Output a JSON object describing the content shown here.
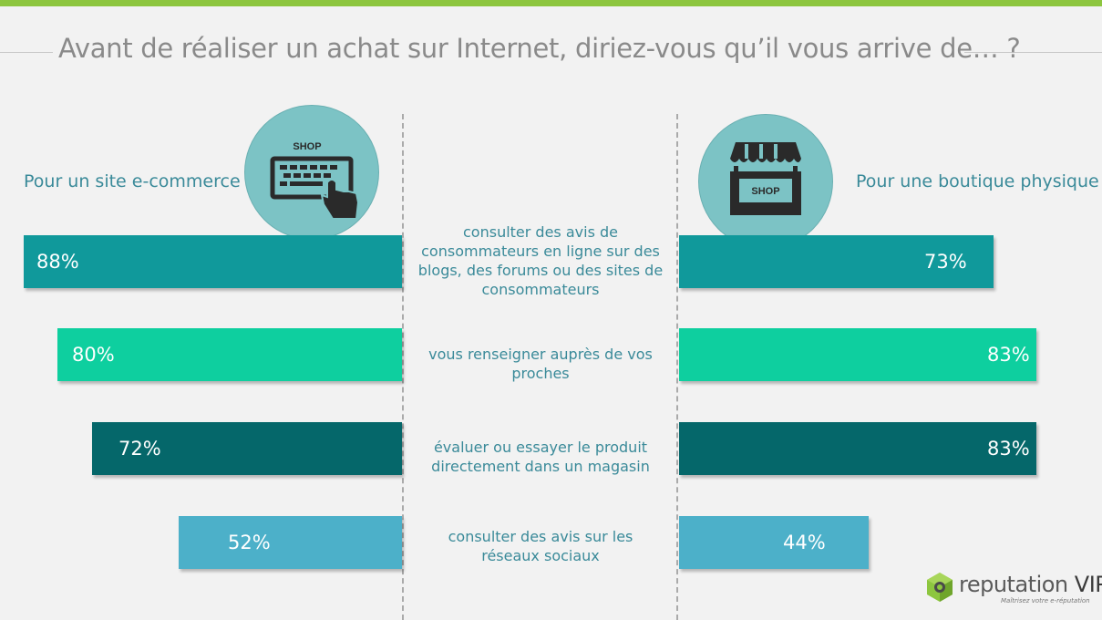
{
  "header": {
    "title": "Avant de réaliser un achat sur Internet, diriez-vous qu’il vous arrive de… ?"
  },
  "columns": {
    "left_label": "Pour un site e-commerce",
    "right_label": "Pour une boutique physique",
    "left_icon": {
      "name": "shop-keyboard-icon",
      "text": "SHOP"
    },
    "right_icon": {
      "name": "storefront-icon",
      "text": "SHOP"
    }
  },
  "chart_data": {
    "type": "bar",
    "orientation": "horizontal-diverging",
    "title": "Avant de réaliser un achat sur Internet, diriez-vous qu’il vous arrive de… ?",
    "categories": [
      "consulter des avis de consommateurs en ligne sur des blogs, des forums ou des sites de consommateurs",
      "vous renseigner auprès de vos proches",
      "évaluer ou essayer le produit directement dans un magasin",
      "consulter des avis sur les réseaux sociaux"
    ],
    "series": [
      {
        "name": "Pour un site e-commerce",
        "values": [
          88,
          80,
          72,
          52
        ],
        "labels": [
          "88%",
          "80%",
          "72%",
          "52%"
        ]
      },
      {
        "name": "Pour une boutique physique",
        "values": [
          73,
          83,
          83,
          44
        ],
        "labels": [
          "73%",
          "83%",
          "83%",
          "44%"
        ]
      }
    ],
    "row_colors": [
      "#10999b",
      "#0ecf9f",
      "#05676a",
      "#4cb0c9"
    ],
    "xlim": [
      0,
      100
    ],
    "unit": "%"
  },
  "logo": {
    "name": "reputation VIP",
    "name_main": "reputation ",
    "name_vip": "VIP",
    "tagline": "Maîtrisez votre e-réputation"
  },
  "colors": {
    "accent": "#8dc63f",
    "label_text": "#3a8a99",
    "icon_circle": "#7cc3c5"
  }
}
